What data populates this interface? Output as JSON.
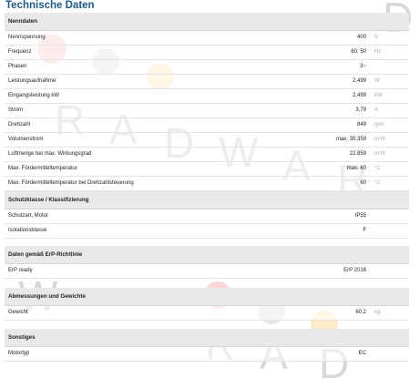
{
  "title": "Technische Daten",
  "watermark": {
    "word": "RADWARD",
    "letters": [
      "R",
      "A",
      "D",
      "W",
      "A",
      "R",
      "D"
    ]
  },
  "sections": [
    {
      "heading": "Nenndaten",
      "rows": [
        {
          "label": "Nennspannung",
          "value": "400",
          "unit": "V"
        },
        {
          "label": "Frequenz",
          "value": "60; 50",
          "unit": "Hz"
        },
        {
          "label": "Phasen",
          "value": "3~",
          "unit": ""
        },
        {
          "label": "Leistungsaufnahme",
          "value": "2.499",
          "unit": "W"
        },
        {
          "label": "Eingangsleistung kW",
          "value": "2,499",
          "unit": "kW"
        },
        {
          "label": "Strom",
          "value": "3,79",
          "unit": "A"
        },
        {
          "label": "Drehzahl",
          "value": "849",
          "unit": "rpm"
        },
        {
          "label": "Volumenstrom",
          "value": "max. 35.359",
          "unit": "m³/h"
        },
        {
          "label": "Luftmenge bei max. Wirkungsgrad",
          "value": "22.859",
          "unit": "m³/h"
        },
        {
          "label": "Max. Fördermitteltemperatur",
          "value": "max. 60",
          "unit": "°C"
        },
        {
          "label": "Max. Fördermitteltemperatur bei Drehzahlsteuerung",
          "value": "60",
          "unit": "°C"
        }
      ]
    },
    {
      "heading": "Schutzklasse / Klassifizierung",
      "rows": [
        {
          "label": "Schutzart, Motor",
          "value": "IP55",
          "unit": ""
        },
        {
          "label": "Isolationsklasse",
          "value": "F",
          "unit": ""
        }
      ]
    },
    {
      "heading": "Daten gemäß ErP-Richtlinie",
      "rows": [
        {
          "label": "ErP ready",
          "value": "ErP 2018",
          "unit": ""
        }
      ]
    },
    {
      "heading": "Abmessungen und Gewichte",
      "rows": [
        {
          "label": "Gewicht",
          "value": "60,2",
          "unit": "kg"
        }
      ]
    },
    {
      "heading": "Sonstiges",
      "rows": [
        {
          "label": "Motortyp",
          "value": "EC",
          "unit": ""
        }
      ]
    }
  ],
  "colors": {
    "title": "#1f5a86",
    "header_bg": "#e9e9e9",
    "blob_red": "#f28a8a",
    "blob_grey": "#bdbdbd",
    "blob_orange": "#f7c36a"
  }
}
